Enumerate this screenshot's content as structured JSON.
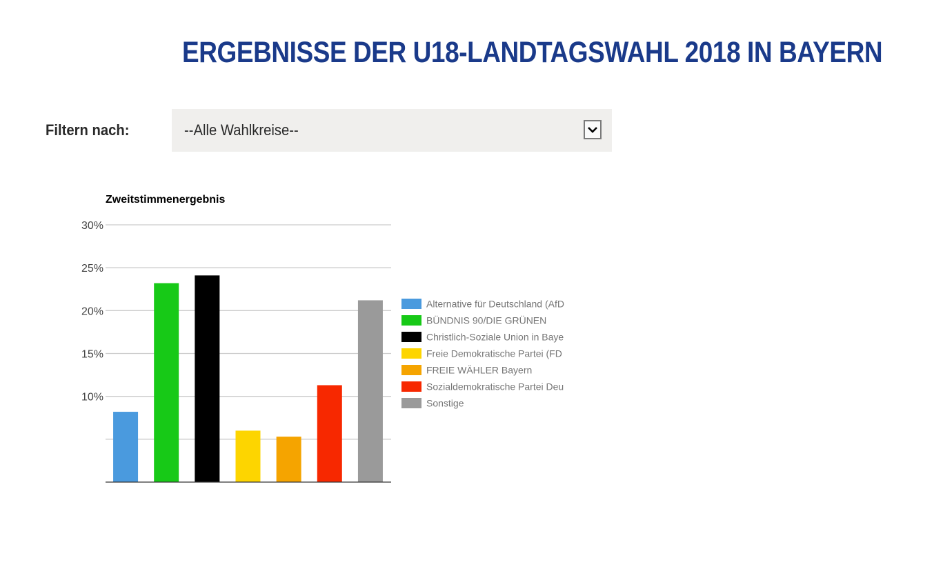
{
  "header": {
    "title": "ERGEBNISSE DER U18-LANDTAGSWAHL 2018 IN BAYERN"
  },
  "filter": {
    "label": "Filtern nach:",
    "selected": "--Alle Wahlkreise--",
    "icon": "chevron-down-icon"
  },
  "chart_data": {
    "type": "bar",
    "title": "Zweitstimmenergebnis",
    "xlabel": "",
    "ylabel": "",
    "ylim": [
      0,
      30
    ],
    "yticks": [
      0,
      5,
      10,
      15,
      20,
      25,
      30
    ],
    "ytick_labels": [
      "",
      "",
      "10%",
      "15%",
      "20%",
      "25%",
      "30%"
    ],
    "grid": true,
    "legend_position": "right",
    "categories": [
      "Alternative für Deutschland (AfD",
      "BÜNDNIS 90/DIE GRÜNEN",
      "Christlich-Soziale Union in Baye",
      "Freie Demokratische Partei (FD",
      "FREIE WÄHLER Bayern",
      "Sozialdemokratische Partei Deu",
      "Sonstige"
    ],
    "values": [
      8.2,
      23.2,
      24.1,
      6.0,
      5.3,
      11.3,
      21.2
    ],
    "colors": [
      "#4a9ade",
      "#17c917",
      "#000000",
      "#fdd500",
      "#f5a400",
      "#f72800",
      "#9a9a9a"
    ],
    "legend": [
      {
        "label": "Alternative für Deutschland (AfD",
        "color": "#4a9ade"
      },
      {
        "label": "BÜNDNIS 90/DIE GRÜNEN",
        "color": "#17c917"
      },
      {
        "label": "Christlich-Soziale Union in Baye",
        "color": "#000000"
      },
      {
        "label": "Freie Demokratische Partei (FD",
        "color": "#fdd500"
      },
      {
        "label": "FREIE WÄHLER Bayern",
        "color": "#f5a400"
      },
      {
        "label": "Sozialdemokratische Partei Deu",
        "color": "#f72800"
      },
      {
        "label": "Sonstige",
        "color": "#9a9a9a"
      }
    ]
  }
}
